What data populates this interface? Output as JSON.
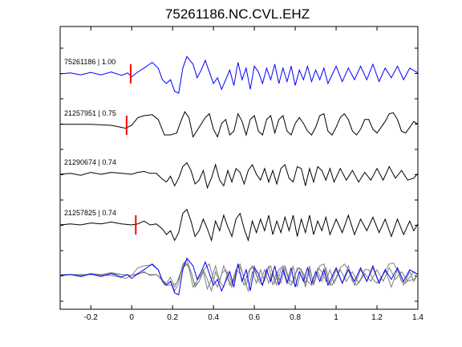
{
  "chart_data": {
    "type": "line",
    "title": "75261186.NC.CVL.EHZ",
    "xlabel": "",
    "ylabel": "",
    "xlim": [
      -0.35,
      1.4
    ],
    "x_ticks": [
      -0.2,
      0,
      0.2,
      0.4,
      0.6,
      0.8,
      1,
      1.2,
      1.4
    ],
    "x_tick_labels": [
      "-0.2",
      "0",
      "0.2",
      "0.4",
      "0.6",
      "0.8",
      "1",
      "1.2",
      "1.4"
    ],
    "grid": false,
    "legend": "none",
    "colors": {
      "reference": "#0000ff",
      "match": "#000000",
      "overlay_match": "#808080",
      "pick": "#ff0000"
    },
    "traces": [
      {
        "label": "75261186 | 1.00",
        "color": "#0000ff",
        "pick_x": -0.005,
        "points": [
          [
            -0.35,
            0
          ],
          [
            -0.3,
            0.05
          ],
          [
            -0.25,
            -0.05
          ],
          [
            -0.2,
            0.08
          ],
          [
            -0.15,
            -0.05
          ],
          [
            -0.1,
            0.1
          ],
          [
            -0.05,
            -0.08
          ],
          [
            -0.02,
            0.05
          ],
          [
            0,
            -0.15
          ],
          [
            0.03,
            0.1
          ],
          [
            0.06,
            0.3
          ],
          [
            0.1,
            0.6
          ],
          [
            0.13,
            0.3
          ],
          [
            0.15,
            -0.3
          ],
          [
            0.17,
            -0.5
          ],
          [
            0.19,
            -0.3
          ],
          [
            0.21,
            -0.9
          ],
          [
            0.23,
            -1.0
          ],
          [
            0.25,
            0.3
          ],
          [
            0.27,
            0.9
          ],
          [
            0.3,
            0.5
          ],
          [
            0.32,
            -0.2
          ],
          [
            0.34,
            0.2
          ],
          [
            0.36,
            0.7
          ],
          [
            0.38,
            0.1
          ],
          [
            0.4,
            -0.5
          ],
          [
            0.42,
            -0.2
          ],
          [
            0.44,
            -0.8
          ],
          [
            0.46,
            -0.3
          ],
          [
            0.48,
            0.2
          ],
          [
            0.5,
            -0.6
          ],
          [
            0.52,
            0.6
          ],
          [
            0.54,
            -0.3
          ],
          [
            0.56,
            0.3
          ],
          [
            0.58,
            -0.8
          ],
          [
            0.6,
            0.4
          ],
          [
            0.62,
            0.1
          ],
          [
            0.64,
            -0.5
          ],
          [
            0.66,
            0.3
          ],
          [
            0.68,
            -0.3
          ],
          [
            0.7,
            0.5
          ],
          [
            0.72,
            -0.5
          ],
          [
            0.74,
            0.3
          ],
          [
            0.76,
            -0.4
          ],
          [
            0.78,
            0.4
          ],
          [
            0.8,
            -0.6
          ],
          [
            0.82,
            0.2
          ],
          [
            0.84,
            -0.3
          ],
          [
            0.86,
            0.4
          ],
          [
            0.88,
            -0.4
          ],
          [
            0.9,
            0.2
          ],
          [
            0.92,
            -0.3
          ],
          [
            0.94,
            0.3
          ],
          [
            0.96,
            -0.5
          ],
          [
            1.0,
            0.4
          ],
          [
            1.03,
            -0.4
          ],
          [
            1.06,
            0.3
          ],
          [
            1.09,
            -0.3
          ],
          [
            1.12,
            0.4
          ],
          [
            1.15,
            -0.3
          ],
          [
            1.18,
            0.5
          ],
          [
            1.21,
            -0.4
          ],
          [
            1.24,
            0.3
          ],
          [
            1.27,
            -0.2
          ],
          [
            1.3,
            0.4
          ],
          [
            1.33,
            -0.3
          ],
          [
            1.36,
            0.3
          ],
          [
            1.4,
            0.05
          ]
        ]
      },
      {
        "label": "21257951 | 0.75",
        "color": "#000000",
        "pick_x": -0.025,
        "points": [
          [
            -0.35,
            0.05
          ],
          [
            -0.2,
            0.05
          ],
          [
            -0.1,
            0.0
          ],
          [
            -0.03,
            -0.15
          ],
          [
            0,
            0.0
          ],
          [
            0.03,
            0.4
          ],
          [
            0.06,
            0.5
          ],
          [
            0.1,
            0.55
          ],
          [
            0.13,
            0.3
          ],
          [
            0.16,
            -0.5
          ],
          [
            0.19,
            -0.5
          ],
          [
            0.22,
            -0.4
          ],
          [
            0.24,
            0.2
          ],
          [
            0.26,
            0.7
          ],
          [
            0.28,
            0.4
          ],
          [
            0.3,
            -0.6
          ],
          [
            0.33,
            -0.1
          ],
          [
            0.36,
            0.4
          ],
          [
            0.38,
            0.6
          ],
          [
            0.4,
            -0.2
          ],
          [
            0.42,
            -0.6
          ],
          [
            0.44,
            0.1
          ],
          [
            0.46,
            0.3
          ],
          [
            0.48,
            -0.5
          ],
          [
            0.5,
            -0.3
          ],
          [
            0.52,
            0.6
          ],
          [
            0.54,
            0.2
          ],
          [
            0.56,
            -0.5
          ],
          [
            0.58,
            0.3
          ],
          [
            0.6,
            0.5
          ],
          [
            0.62,
            -0.3
          ],
          [
            0.64,
            -0.5
          ],
          [
            0.66,
            0.3
          ],
          [
            0.68,
            0.5
          ],
          [
            0.7,
            -0.4
          ],
          [
            0.72,
            0.3
          ],
          [
            0.74,
            0.5
          ],
          [
            0.76,
            -0.3
          ],
          [
            0.78,
            -0.5
          ],
          [
            0.8,
            0.1
          ],
          [
            0.82,
            0.4
          ],
          [
            0.84,
            0.1
          ],
          [
            0.86,
            -0.3
          ],
          [
            0.88,
            -0.5
          ],
          [
            0.9,
            -0.1
          ],
          [
            0.92,
            0.5
          ],
          [
            0.94,
            0.6
          ],
          [
            0.96,
            -0.3
          ],
          [
            0.98,
            -0.5
          ],
          [
            1.0,
            -0.1
          ],
          [
            1.02,
            0.4
          ],
          [
            1.04,
            0.6
          ],
          [
            1.06,
            0.3
          ],
          [
            1.08,
            -0.3
          ],
          [
            1.1,
            -0.5
          ],
          [
            1.12,
            -0.2
          ],
          [
            1.14,
            0.3
          ],
          [
            1.16,
            0.3
          ],
          [
            1.18,
            -0.2
          ],
          [
            1.2,
            -0.4
          ],
          [
            1.22,
            -0.1
          ],
          [
            1.24,
            0.2
          ],
          [
            1.26,
            0.6
          ],
          [
            1.28,
            0.65
          ],
          [
            1.3,
            0.3
          ],
          [
            1.32,
            -0.3
          ],
          [
            1.34,
            -0.4
          ],
          [
            1.36,
            -0.1
          ],
          [
            1.38,
            0.2
          ],
          [
            1.4,
            0.05
          ]
        ]
      },
      {
        "label": "21290674 | 0.74",
        "color": "#000000",
        "pick_x": null,
        "points": [
          [
            -0.35,
            0
          ],
          [
            -0.3,
            0.05
          ],
          [
            -0.25,
            -0.05
          ],
          [
            -0.2,
            0.1
          ],
          [
            -0.15,
            0.0
          ],
          [
            -0.1,
            0.1
          ],
          [
            -0.05,
            0.05
          ],
          [
            0,
            0.0
          ],
          [
            0.03,
            0.1
          ],
          [
            0.06,
            0.15
          ],
          [
            0.09,
            0.05
          ],
          [
            0.12,
            0.05
          ],
          [
            0.15,
            -0.25
          ],
          [
            0.17,
            -0.4
          ],
          [
            0.19,
            -0.1
          ],
          [
            0.21,
            -0.6
          ],
          [
            0.23,
            -0.2
          ],
          [
            0.25,
            0.4
          ],
          [
            0.27,
            0.6
          ],
          [
            0.29,
            0.2
          ],
          [
            0.31,
            -0.5
          ],
          [
            0.33,
            -0.3
          ],
          [
            0.35,
            0.2
          ],
          [
            0.37,
            -0.7
          ],
          [
            0.39,
            -0.2
          ],
          [
            0.41,
            0.5
          ],
          [
            0.43,
            -0.3
          ],
          [
            0.45,
            -0.6
          ],
          [
            0.47,
            0.2
          ],
          [
            0.49,
            -0.4
          ],
          [
            0.51,
            0.3
          ],
          [
            0.53,
            0.1
          ],
          [
            0.55,
            -0.5
          ],
          [
            0.57,
            0.2
          ],
          [
            0.59,
            0.5
          ],
          [
            0.61,
            0.0
          ],
          [
            0.63,
            -0.3
          ],
          [
            0.65,
            0.3
          ],
          [
            0.67,
            -0.4
          ],
          [
            0.69,
            0.2
          ],
          [
            0.71,
            -0.5
          ],
          [
            0.73,
            0.3
          ],
          [
            0.75,
            0.5
          ],
          [
            0.77,
            -0.2
          ],
          [
            0.79,
            -0.4
          ],
          [
            0.81,
            0.4
          ],
          [
            0.83,
            0.3
          ],
          [
            0.85,
            -0.6
          ],
          [
            0.87,
            0.3
          ],
          [
            0.89,
            -0.4
          ],
          [
            0.91,
            0.4
          ],
          [
            0.93,
            0.2
          ],
          [
            0.95,
            -0.3
          ],
          [
            0.97,
            0.3
          ],
          [
            0.99,
            -0.4
          ],
          [
            1.02,
            0.3
          ],
          [
            1.05,
            -0.3
          ],
          [
            1.08,
            0.2
          ],
          [
            1.11,
            -0.4
          ],
          [
            1.14,
            0.1
          ],
          [
            1.17,
            -0.3
          ],
          [
            1.2,
            0.3
          ],
          [
            1.23,
            -0.3
          ],
          [
            1.26,
            0.4
          ],
          [
            1.29,
            -0.2
          ],
          [
            1.32,
            0.2
          ],
          [
            1.35,
            -0.3
          ],
          [
            1.38,
            -0.2
          ],
          [
            1.4,
            0.05
          ]
        ]
      },
      {
        "label": "21257825 | 0.74",
        "color": "#000000",
        "pick_x": 0.02,
        "points": [
          [
            -0.35,
            0
          ],
          [
            -0.3,
            0.05
          ],
          [
            -0.25,
            0.0
          ],
          [
            -0.2,
            0.1
          ],
          [
            -0.15,
            0.05
          ],
          [
            -0.1,
            0.15
          ],
          [
            -0.05,
            0.05
          ],
          [
            0,
            0.0
          ],
          [
            0.03,
            0.05
          ],
          [
            0.06,
            0.2
          ],
          [
            0.09,
            0.0
          ],
          [
            0.12,
            0.05
          ],
          [
            0.15,
            -0.2
          ],
          [
            0.17,
            -0.5
          ],
          [
            0.19,
            -0.3
          ],
          [
            0.21,
            -0.8
          ],
          [
            0.23,
            -0.4
          ],
          [
            0.25,
            0.6
          ],
          [
            0.27,
            0.8
          ],
          [
            0.29,
            0.2
          ],
          [
            0.31,
            -0.6
          ],
          [
            0.33,
            -0.3
          ],
          [
            0.35,
            0.3
          ],
          [
            0.37,
            -0.2
          ],
          [
            0.39,
            -0.8
          ],
          [
            0.41,
            0.2
          ],
          [
            0.43,
            -0.3
          ],
          [
            0.45,
            0.5
          ],
          [
            0.47,
            -0.1
          ],
          [
            0.49,
            -0.6
          ],
          [
            0.51,
            0.3
          ],
          [
            0.53,
            0.6
          ],
          [
            0.55,
            -0.2
          ],
          [
            0.57,
            -0.8
          ],
          [
            0.59,
            0.2
          ],
          [
            0.61,
            -0.4
          ],
          [
            0.63,
            0.3
          ],
          [
            0.65,
            -0.3
          ],
          [
            0.67,
            0.5
          ],
          [
            0.69,
            -0.5
          ],
          [
            0.71,
            0.2
          ],
          [
            0.73,
            -0.4
          ],
          [
            0.75,
            0.4
          ],
          [
            0.77,
            -0.3
          ],
          [
            0.79,
            0.5
          ],
          [
            0.81,
            -0.6
          ],
          [
            0.83,
            0.3
          ],
          [
            0.85,
            -0.4
          ],
          [
            0.87,
            0.5
          ],
          [
            0.89,
            -0.5
          ],
          [
            0.91,
            0.2
          ],
          [
            0.93,
            -0.3
          ],
          [
            0.95,
            0.4
          ],
          [
            0.97,
            -0.5
          ],
          [
            1.0,
            0.3
          ],
          [
            1.03,
            -0.4
          ],
          [
            1.06,
            0.5
          ],
          [
            1.09,
            -0.5
          ],
          [
            1.12,
            0.3
          ],
          [
            1.15,
            -0.3
          ],
          [
            1.18,
            0.4
          ],
          [
            1.21,
            -0.4
          ],
          [
            1.24,
            0.3
          ],
          [
            1.27,
            -0.6
          ],
          [
            1.3,
            0.3
          ],
          [
            1.33,
            -0.5
          ],
          [
            1.36,
            0.2
          ],
          [
            1.38,
            -0.3
          ],
          [
            1.4,
            0.05
          ]
        ]
      }
    ],
    "overlay": {
      "note_traces_overlaid": [
        0,
        1,
        2,
        3
      ]
    }
  }
}
